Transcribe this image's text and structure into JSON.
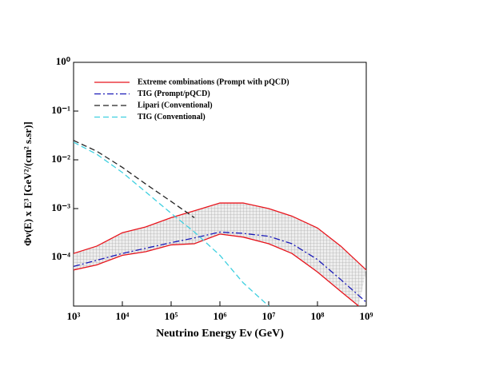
{
  "chart_data": {
    "type": "line",
    "xlabel": "Neutrino Energy  Eν (GeV)",
    "ylabel": "Φν(E) x E³   [GeV²/(cm² s.sr)]",
    "xscale": "log",
    "yscale": "log",
    "xlim": [
      1000,
      1000000000
    ],
    "ylim": [
      1e-05,
      1
    ],
    "xticks": [
      {
        "value": 1000,
        "label": "10³"
      },
      {
        "value": 10000,
        "label": "10⁴"
      },
      {
        "value": 100000,
        "label": "10⁵"
      },
      {
        "value": 1000000,
        "label": "10⁶"
      },
      {
        "value": 10000000,
        "label": "10⁷"
      },
      {
        "value": 100000000,
        "label": "10⁸"
      },
      {
        "value": 1000000000,
        "label": "10⁹"
      }
    ],
    "yticks": [
      {
        "value": 1,
        "label": "10⁰"
      },
      {
        "value": 0.1,
        "label": "10⁻¹"
      },
      {
        "value": 0.01,
        "label": "10⁻²"
      },
      {
        "value": 0.001,
        "label": "10⁻³"
      },
      {
        "value": 0.0001,
        "label": "10⁻⁴"
      }
    ],
    "series": [
      {
        "name": "Extreme combinations (Prompt with pQCD)",
        "color": "#e8141c",
        "style": "solid",
        "x": [
          1000,
          3000,
          10000,
          30000,
          100000,
          300000,
          1000000,
          3000000,
          10000000,
          30000000,
          100000000,
          300000000,
          1000000000
        ],
        "values": [
          0.00012,
          0.00017,
          0.00032,
          0.00042,
          0.00065,
          0.0009,
          0.0013,
          0.0013,
          0.001,
          0.0007,
          0.0004,
          0.00017,
          5.5e-05
        ]
      },
      {
        "x": [
          1000,
          3000,
          10000,
          30000,
          100000,
          300000,
          1000000,
          3000000,
          10000000,
          30000000,
          100000000,
          300000000,
          700000000
        ],
        "values": [
          5.5e-05,
          7e-05,
          0.00011,
          0.00013,
          0.00018,
          0.00019,
          0.0003,
          0.00026,
          0.00019,
          0.00012,
          5e-05,
          2e-05,
          1e-05
        ],
        "color": "#e8141c",
        "style": "solid"
      },
      {
        "name": "TIG (Prompt/pQCD)",
        "color": "#1a1ab8",
        "style": "dashdot",
        "x": [
          1000,
          10000,
          100000,
          300000,
          1000000,
          3000000,
          10000000,
          30000000,
          100000000,
          300000000,
          1000000000
        ],
        "values": [
          6.5e-05,
          0.00012,
          0.0002,
          0.00025,
          0.00033,
          0.00031,
          0.00027,
          0.00019,
          9e-05,
          3.5e-05,
          1.2e-05
        ]
      },
      {
        "name": "Lipari (Conventional)",
        "color": "#222222",
        "style": "dashed",
        "x": [
          1000,
          3000,
          10000,
          30000,
          100000,
          300000
        ],
        "values": [
          0.025,
          0.015,
          0.007,
          0.0032,
          0.0014,
          0.00065
        ]
      },
      {
        "name": "TIG  (Conventional)",
        "color": "#3fd0e0",
        "style": "dashed",
        "x": [
          1000,
          3000,
          10000,
          30000,
          100000,
          300000,
          1000000,
          3000000,
          10000000
        ],
        "values": [
          0.023,
          0.013,
          0.0055,
          0.0022,
          0.0008,
          0.00033,
          0.00011,
          3e-05,
          1e-05
        ]
      }
    ]
  }
}
